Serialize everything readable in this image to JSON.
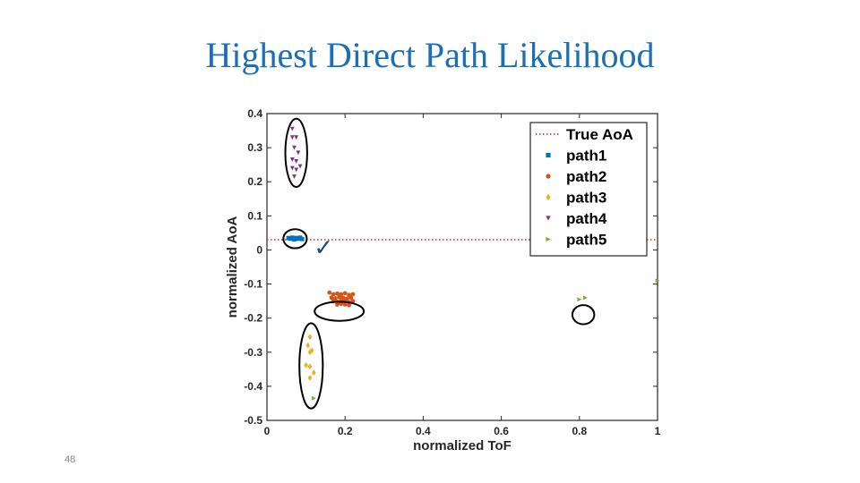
{
  "slide": {
    "title": "Highest Direct Path Likelihood",
    "page_number": "48"
  },
  "chart_data": {
    "type": "scatter",
    "xlabel": "normalized ToF",
    "ylabel": "normalized AoA",
    "xlim": [
      0,
      1
    ],
    "ylim": [
      -0.5,
      0.4
    ],
    "xticks": [
      "0",
      "0.2",
      "0.4",
      "0.6",
      "0.8",
      "1"
    ],
    "yticks": [
      "-0.5",
      "-0.4",
      "-0.3",
      "-0.2",
      "-0.1",
      "0",
      "0.1",
      "0.2",
      "0.3",
      "0.4"
    ],
    "grid": false,
    "legend_position": "top-right",
    "reference_line": {
      "name": "True AoA",
      "y": 0.03,
      "style": "dotted",
      "color": "#d62728"
    },
    "series": [
      {
        "name": "path1",
        "marker": "square",
        "color": "#0072bd",
        "points": [
          [
            0.055,
            0.035
          ],
          [
            0.06,
            0.033
          ],
          [
            0.065,
            0.036
          ],
          [
            0.07,
            0.031
          ],
          [
            0.075,
            0.035
          ],
          [
            0.08,
            0.033
          ],
          [
            0.085,
            0.036
          ],
          [
            0.09,
            0.032
          ]
        ]
      },
      {
        "name": "path2",
        "marker": "circle",
        "color": "#d95319",
        "points": [
          [
            0.16,
            -0.125
          ],
          [
            0.17,
            -0.13
          ],
          [
            0.18,
            -0.128
          ],
          [
            0.19,
            -0.13
          ],
          [
            0.2,
            -0.127
          ],
          [
            0.21,
            -0.132
          ],
          [
            0.22,
            -0.13
          ],
          [
            0.165,
            -0.14
          ],
          [
            0.175,
            -0.142
          ],
          [
            0.185,
            -0.138
          ],
          [
            0.195,
            -0.14
          ],
          [
            0.205,
            -0.143
          ],
          [
            0.215,
            -0.14
          ],
          [
            0.17,
            -0.15
          ],
          [
            0.18,
            -0.152
          ],
          [
            0.19,
            -0.148
          ],
          [
            0.2,
            -0.15
          ],
          [
            0.21,
            -0.153
          ],
          [
            0.22,
            -0.15
          ],
          [
            0.18,
            -0.16
          ],
          [
            0.19,
            -0.158
          ],
          [
            0.2,
            -0.16
          ],
          [
            0.21,
            -0.162
          ]
        ]
      },
      {
        "name": "path3",
        "marker": "diamond",
        "color": "#edb120",
        "points": [
          [
            0.11,
            -0.255
          ],
          [
            0.105,
            -0.28
          ],
          [
            0.115,
            -0.295
          ],
          [
            0.11,
            -0.3
          ],
          [
            0.1,
            -0.338
          ],
          [
            0.11,
            -0.342
          ],
          [
            0.12,
            -0.36
          ],
          [
            0.11,
            -0.375
          ]
        ]
      },
      {
        "name": "path4",
        "marker": "triangle-down",
        "color": "#7e2f8e",
        "points": [
          [
            0.065,
            0.355
          ],
          [
            0.065,
            0.33
          ],
          [
            0.075,
            0.33
          ],
          [
            0.07,
            0.3
          ],
          [
            0.08,
            0.285
          ],
          [
            0.065,
            0.265
          ],
          [
            0.075,
            0.26
          ],
          [
            0.085,
            0.245
          ],
          [
            0.065,
            0.24
          ],
          [
            0.075,
            0.235
          ],
          [
            0.07,
            0.215
          ]
        ]
      },
      {
        "name": "path5",
        "marker": "triangle-right",
        "color": "#77ac30",
        "points": [
          [
            0.12,
            -0.435
          ],
          [
            0.8,
            -0.145
          ],
          [
            0.815,
            -0.14
          ],
          [
            1.0,
            -0.09
          ]
        ]
      }
    ],
    "annotations": [
      {
        "shape": "ellipse",
        "cx": 0.075,
        "cy": 0.285,
        "rx": 0.028,
        "ry": 0.1
      },
      {
        "shape": "ellipse",
        "cx": 0.072,
        "cy": 0.033,
        "rx": 0.03,
        "ry": 0.028
      },
      {
        "shape": "ellipse",
        "cx": 0.185,
        "cy": -0.18,
        "rx": 0.063,
        "ry": 0.028
      },
      {
        "shape": "ellipse",
        "cx": 0.113,
        "cy": -0.34,
        "rx": 0.03,
        "ry": 0.125
      },
      {
        "shape": "ellipse",
        "cx": 0.81,
        "cy": -0.19,
        "rx": 0.028,
        "ry": 0.028
      },
      {
        "shape": "checkmark",
        "glyph": "✓",
        "x": 0.145,
        "y": 0.0
      }
    ]
  }
}
